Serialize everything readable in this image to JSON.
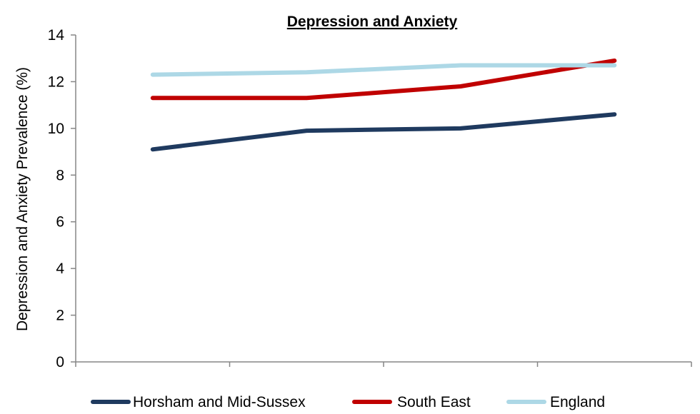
{
  "chart_data": {
    "type": "line",
    "title": "Depression and Anxiety",
    "xlabel": "",
    "ylabel": "Depression and Anxiety Prevalence (%)",
    "ylim": [
      0,
      14
    ],
    "yticks": [
      "0",
      "2",
      "4",
      "6",
      "8",
      "10",
      "12",
      "14"
    ],
    "grid": false,
    "legend_position": "bottom",
    "x": [
      1,
      2,
      3,
      4
    ],
    "series": [
      {
        "name": "Horsham and Mid-Sussex",
        "color": "#1f3a5f",
        "values": [
          9.1,
          9.9,
          10.0,
          10.6
        ]
      },
      {
        "name": "South East",
        "color": "#c00000",
        "values": [
          11.3,
          11.3,
          11.8,
          12.9
        ]
      },
      {
        "name": "England",
        "color": "#add8e6",
        "values": [
          12.3,
          12.4,
          12.7,
          12.7
        ]
      }
    ]
  }
}
